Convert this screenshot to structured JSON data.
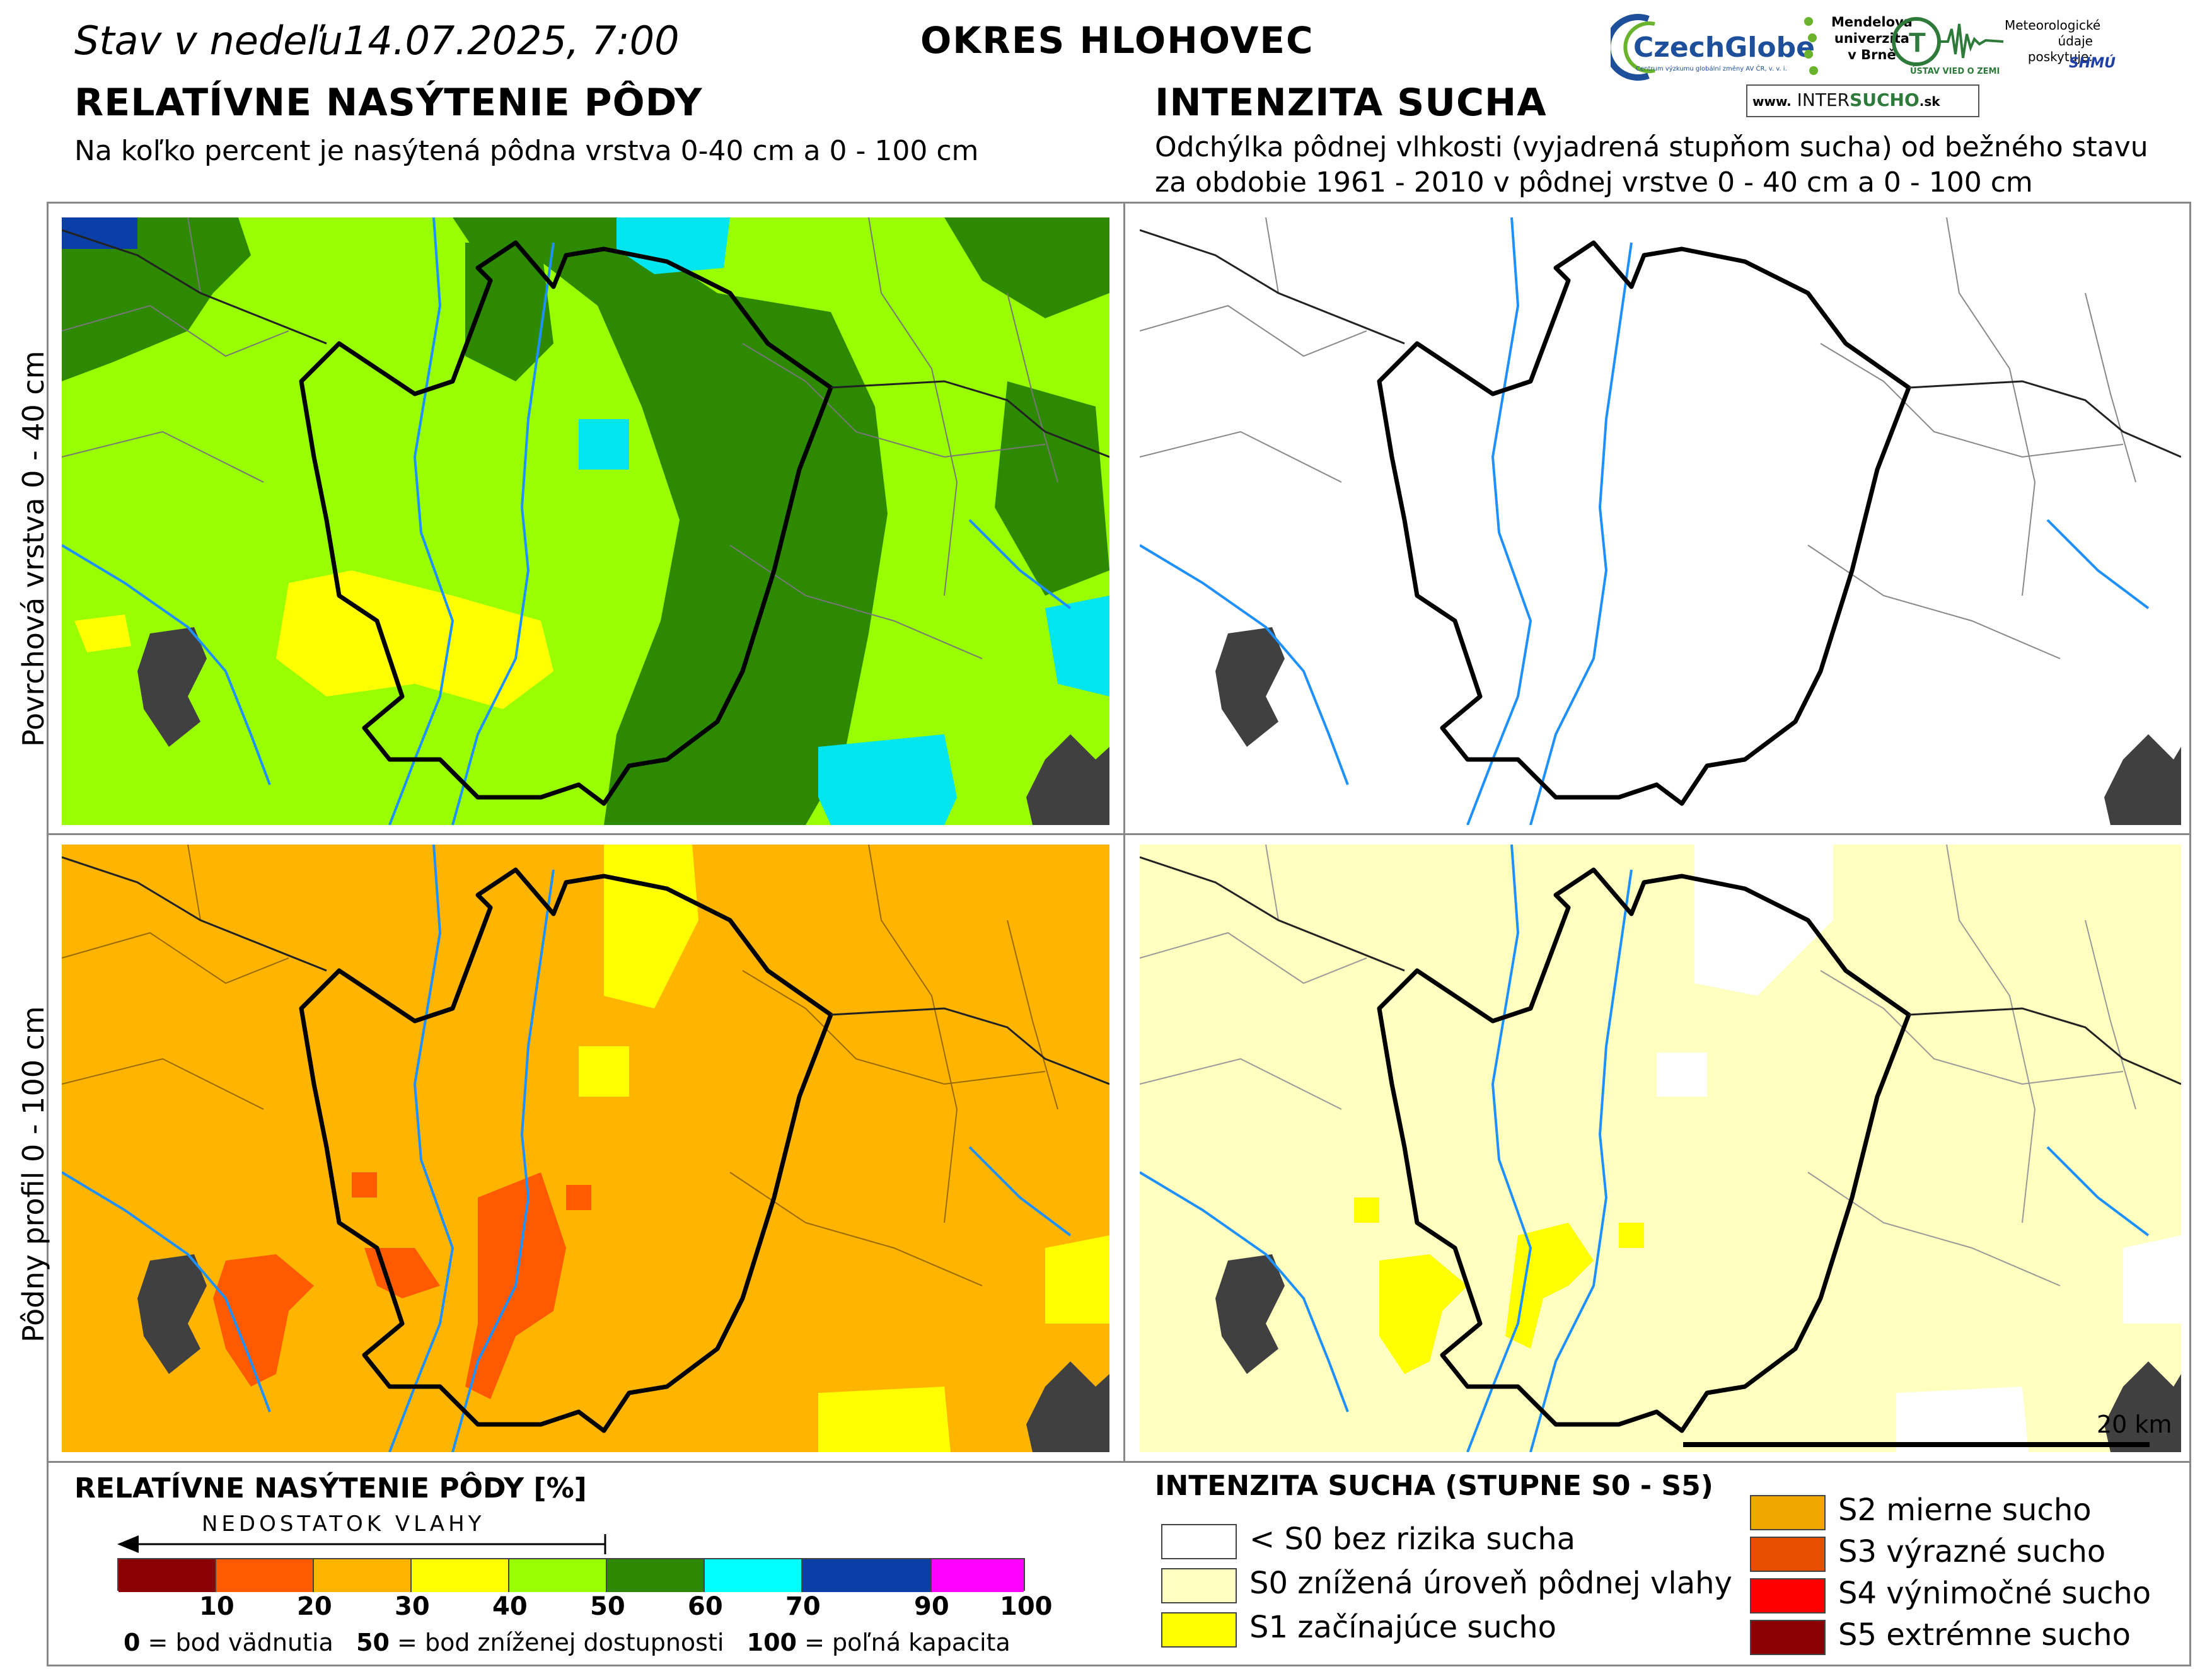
{
  "header": {
    "day_text": "Stav v nedeľu",
    "date_text": "14.07.2025, 7:00",
    "district": "OKRES  HLOHOVEC"
  },
  "left": {
    "title": "RELATÍVNE NASÝTENIE PÔDY",
    "subtitle": "Na koľko percent je nasýtená pôdna vrstva 0-40 cm a 0 - 100 cm"
  },
  "right": {
    "title": "INTENZITA SUCHA",
    "subtitle_1": "Odchýlka pôdnej vlhkosti (vyjadrená stupňom sucha) od bežného stavu",
    "subtitle_2": "za obdobie 1961 - 2010 v pôdnej vrstve 0 - 40 cm a 0 - 100 cm"
  },
  "row_labels": {
    "top": "Povrchová vrstva 0 - 40 cm",
    "bottom": "Pôdny profil 0 - 100 cm"
  },
  "logos": {
    "czechglobe": "CzechGlobe",
    "czechglobe_sub": "Centrum výzkumu globální změny AV ČR, v. v. i.",
    "mendel_1": "Mendelova",
    "mendel_2": "univerzita",
    "mendel_3": "v Brně",
    "ustav": "ÚSTAV VIED O ZEMI",
    "meteo_1": "Meteorologické",
    "meteo_2": "údaje",
    "meteo_3": "poskytuje:",
    "shmu": "SHMÚ",
    "intersucho_www": "www.",
    "intersucho_a": "INTER",
    "intersucho_b": "SUCHO",
    "intersucho_c": ".sk"
  },
  "scale_bar": "20 km",
  "legend_left": {
    "title": "RELATÍVNE NASÝTENIE PÔDY [%]",
    "arrow_label": "NEDOSTATOK VLAHY",
    "colors": [
      "#8b0000",
      "#ff5a00",
      "#ffb400",
      "#ffff00",
      "#99ff00",
      "#2d8a00",
      "#00ffff",
      "#0a3fa8",
      "#ff00ff"
    ],
    "ticks": [
      "10",
      "20",
      "30",
      "40",
      "50",
      "60",
      "70",
      "90",
      "100"
    ],
    "note_0": "0",
    "note_0_text": " = bod vädnutia",
    "note_50": "50",
    "note_50_text": " = bod zníženej dostupnosti",
    "note_100": "100",
    "note_100_text": " = poľná kapacita"
  },
  "legend_right": {
    "title": "INTENZITA SUCHA (STUPNE S0 - S5)",
    "items": [
      {
        "label": "< S0 bez rizika sucha",
        "color": "#ffffff"
      },
      {
        "label": "S0 znížená úroveň pôdnej vlahy",
        "color": "#ffffc0"
      },
      {
        "label": "S1 začínajúce sucho",
        "color": "#ffff00"
      },
      {
        "label": "S2 mierne sucho",
        "color": "#f0a800"
      },
      {
        "label": "S3 výrazné sucho",
        "color": "#e85000"
      },
      {
        "label": "S4 výnimočné sucho",
        "color": "#ff0000"
      },
      {
        "label": "S5 extrémne sucho",
        "color": "#8b0000"
      }
    ]
  },
  "map_colors": {
    "light_green": "#99ff00",
    "dark_green": "#2d8a00",
    "cyan": "#00e5ee",
    "blue": "#1c5ab0",
    "yellow": "#ffff00",
    "orange": "#ffb400",
    "red": "#ff5a00",
    "pale_yellow": "#ffffc0",
    "urban": "#404040",
    "water": "#1e90ff"
  }
}
